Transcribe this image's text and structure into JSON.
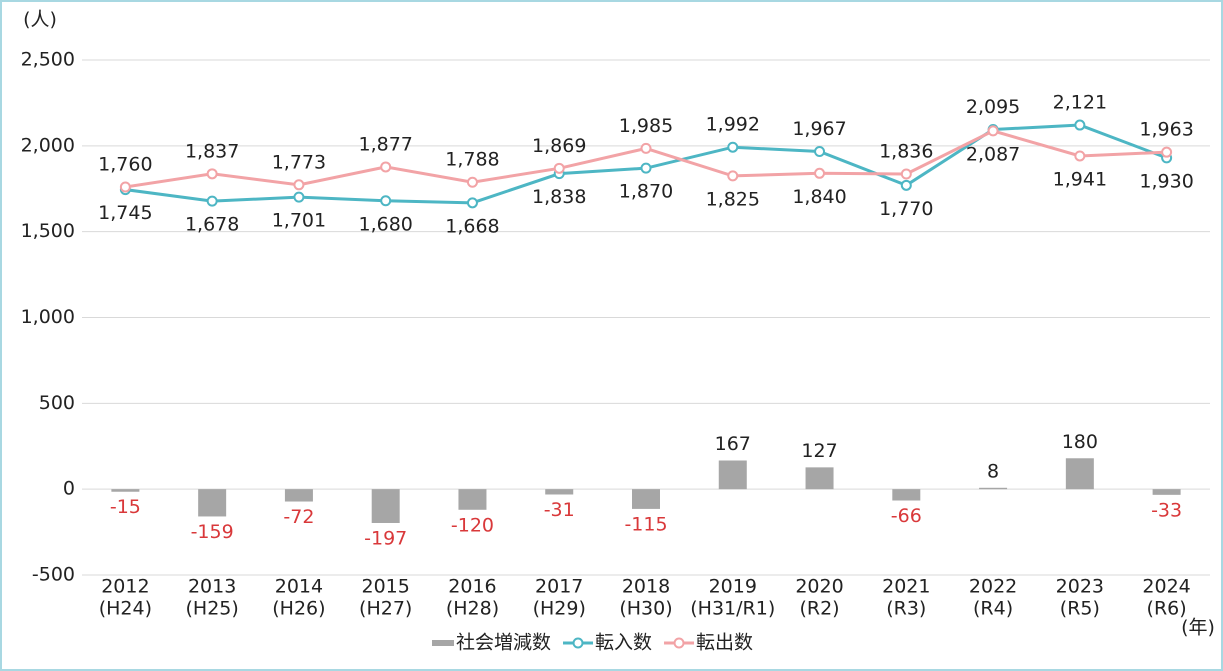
{
  "chart_data": {
    "type": "bar-line",
    "y_unit": "(人)",
    "x_unit": "(年)",
    "categories": [
      "2012",
      "2013",
      "2014",
      "2015",
      "2016",
      "2017",
      "2018",
      "2019",
      "2020",
      "2021",
      "2022",
      "2023",
      "2024"
    ],
    "category_sublabels": [
      "(H24)",
      "(H25)",
      "(H26)",
      "(H27)",
      "(H28)",
      "(H29)",
      "(H30)",
      "(H31/R1)",
      "(R2)",
      "(R3)",
      "(R4)",
      "(R5)",
      "(R6)"
    ],
    "ylim": [
      -500,
      2500
    ],
    "yticks": [
      {
        "value": -500,
        "label": "-500"
      },
      0,
      500,
      {
        "value": 1000,
        "label": "1,000"
      },
      {
        "value": 1500,
        "label": "1,500"
      },
      {
        "value": 2000,
        "label": "2,000"
      },
      {
        "value": 2500,
        "label": "2,500"
      }
    ],
    "grid": true,
    "series": [
      {
        "name": "社会増減数",
        "kind": "bar",
        "color": "#a6a6a6",
        "negative_label_color": "#d9383a",
        "values": [
          -15,
          -159,
          -72,
          -197,
          -120,
          -31,
          -115,
          167,
          127,
          -66,
          8,
          180,
          -33
        ]
      },
      {
        "name": "転入数",
        "kind": "line",
        "color": "#4db6c4",
        "values": [
          1745,
          1678,
          1701,
          1680,
          1668,
          1838,
          1870,
          1992,
          1967,
          1770,
          2095,
          2121,
          1930
        ],
        "value_labels": [
          "1,745",
          "1,678",
          "1,701",
          "1,680",
          "1,668",
          "1,838",
          "1,870",
          "1,992",
          "1,967",
          "1,770",
          "2,095",
          "2,121",
          "1,930"
        ]
      },
      {
        "name": "転出数",
        "kind": "line",
        "color": "#f2a3a6",
        "values": [
          1760,
          1837,
          1773,
          1877,
          1788,
          1869,
          1985,
          1825,
          1840,
          1836,
          2087,
          1941,
          1963
        ],
        "value_labels": [
          "1,760",
          "1,837",
          "1,773",
          "1,877",
          "1,788",
          "1,869",
          "1,985",
          "1,825",
          "1,840",
          "1,836",
          "2,087",
          "1,941",
          "1,963"
        ]
      }
    ]
  }
}
